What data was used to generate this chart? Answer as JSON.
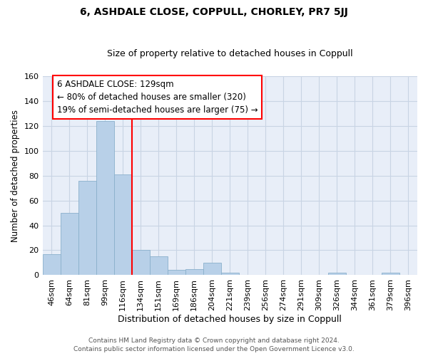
{
  "title": "6, ASHDALE CLOSE, COPPULL, CHORLEY, PR7 5JJ",
  "subtitle": "Size of property relative to detached houses in Coppull",
  "xlabel": "Distribution of detached houses by size in Coppull",
  "ylabel": "Number of detached properties",
  "bar_color": "#b8d0e8",
  "bar_edge_color": "#8ab0cc",
  "background_color": "#e8eef8",
  "grid_color": "#c8d4e4",
  "categories": [
    "46sqm",
    "64sqm",
    "81sqm",
    "99sqm",
    "116sqm",
    "134sqm",
    "151sqm",
    "169sqm",
    "186sqm",
    "204sqm",
    "221sqm",
    "239sqm",
    "256sqm",
    "274sqm",
    "291sqm",
    "309sqm",
    "326sqm",
    "344sqm",
    "361sqm",
    "379sqm",
    "396sqm"
  ],
  "values": [
    17,
    50,
    76,
    124,
    81,
    20,
    15,
    4,
    5,
    10,
    2,
    0,
    0,
    0,
    0,
    0,
    2,
    0,
    0,
    2,
    0
  ],
  "ylim": [
    0,
    160
  ],
  "yticks": [
    0,
    20,
    40,
    60,
    80,
    100,
    120,
    140,
    160
  ],
  "property_line_x": 4.5,
  "annotation_line1": "6 ASHDALE CLOSE: 129sqm",
  "annotation_line2": "← 80% of detached houses are smaller (320)",
  "annotation_line3": "19% of semi-detached houses are larger (75) →",
  "annotation_box_color": "white",
  "annotation_box_edge_color": "red",
  "vline_color": "red",
  "footer_line1": "Contains HM Land Registry data © Crown copyright and database right 2024.",
  "footer_line2": "Contains public sector information licensed under the Open Government Licence v3.0.",
  "title_fontsize": 10,
  "subtitle_fontsize": 9,
  "xlabel_fontsize": 9,
  "ylabel_fontsize": 8.5,
  "tick_fontsize": 8,
  "annotation_fontsize": 8.5,
  "footer_fontsize": 6.5
}
